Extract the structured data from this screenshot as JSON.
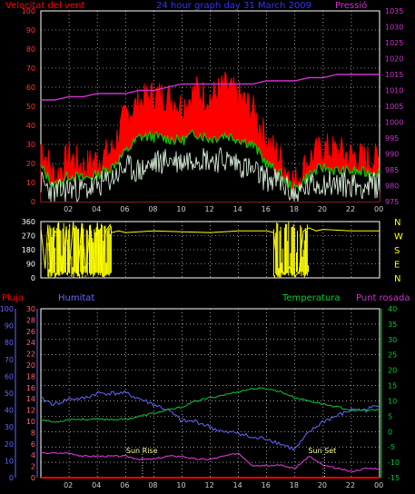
{
  "colors": {
    "background": "#000000",
    "frame": "#ffffff",
    "grid": "#ffffff",
    "wind": "#ff0000",
    "wind_gust_fill": "#ff0000",
    "wind_avg": "#00cc00",
    "wind_white": "#e8ffe8",
    "pressure": "#cc33cc",
    "direction": "#ffff00",
    "rain": "#ff0000",
    "humidity": "#6666ff",
    "temperature": "#00cc33",
    "dewpoint": "#cc33cc",
    "sun_marker": "#ffffff"
  },
  "chart_data": [
    {
      "id": "wind-pressure",
      "type": "line",
      "title": "24 hour graph day  31 March 2009",
      "left_label": "Velocitat del vent",
      "right_label": "Pressió",
      "x_ticks": [
        "02",
        "04",
        "06",
        "08",
        "10",
        "12",
        "14",
        "16",
        "18",
        "20",
        "22",
        "00"
      ],
      "ylim_left": [
        0,
        100
      ],
      "yticks_left": [
        0,
        10,
        20,
        30,
        40,
        50,
        60,
        70,
        80,
        90,
        100
      ],
      "ylim_right": [
        975,
        1035
      ],
      "yticks_right": [
        975,
        980,
        985,
        990,
        995,
        1000,
        1005,
        1010,
        1015,
        1020,
        1025,
        1030,
        1035
      ],
      "x_hours": [
        0,
        1,
        2,
        3,
        4,
        5,
        6,
        7,
        8,
        9,
        10,
        11,
        12,
        13,
        14,
        15,
        16,
        17,
        18,
        19,
        20,
        21,
        22,
        23,
        24
      ],
      "series": [
        {
          "key": "gust",
          "values": [
            30,
            12,
            24,
            18,
            22,
            26,
            45,
            52,
            56,
            55,
            50,
            58,
            54,
            60,
            55,
            48,
            32,
            22,
            10,
            22,
            28,
            26,
            24,
            22,
            22
          ]
        },
        {
          "key": "avg",
          "values": [
            18,
            8,
            14,
            12,
            14,
            18,
            26,
            34,
            34,
            33,
            32,
            36,
            33,
            35,
            33,
            30,
            20,
            14,
            6,
            14,
            18,
            16,
            16,
            15,
            16
          ]
        },
        {
          "key": "low",
          "values": [
            10,
            4,
            7,
            6,
            8,
            12,
            18,
            16,
            20,
            22,
            21,
            24,
            22,
            22,
            20,
            16,
            12,
            10,
            3,
            8,
            10,
            9,
            9,
            8,
            9
          ]
        },
        {
          "key": "pressure",
          "values": [
            1007,
            1007,
            1008,
            1008,
            1009,
            1009,
            1009,
            1010,
            1010,
            1011,
            1012,
            1012,
            1012,
            1012,
            1012,
            1012,
            1013,
            1013,
            1013,
            1014,
            1014,
            1015,
            1015,
            1015,
            1015
          ]
        }
      ]
    },
    {
      "id": "wind-direction",
      "type": "line",
      "ylim": [
        0,
        360
      ],
      "yticks": [
        0,
        90,
        180,
        270,
        360
      ],
      "compass": [
        "N",
        "W",
        "S",
        "E",
        "N"
      ],
      "x_hours": [
        0,
        0.3,
        0.5,
        0.7,
        1.0,
        1.2,
        1.5,
        1.8,
        2.0,
        2.3,
        2.6,
        2.9,
        3.2,
        3.5,
        3.8,
        4.0,
        4.3,
        4.6,
        4.9,
        5.0,
        5.5,
        6,
        8,
        10,
        12,
        14,
        16,
        16.5,
        16.8,
        17.0,
        17.3,
        17.6,
        18,
        18.3,
        18.6,
        19,
        19.5,
        20,
        22,
        24
      ],
      "values": [
        320,
        60,
        340,
        20,
        300,
        280,
        20,
        330,
        40,
        360,
        10,
        350,
        30,
        340,
        20,
        350,
        40,
        300,
        340,
        290,
        300,
        290,
        300,
        295,
        290,
        300,
        300,
        290,
        30,
        60,
        20,
        70,
        10,
        40,
        300,
        320,
        300,
        310,
        300,
        300
      ]
    },
    {
      "id": "humidity-temperature",
      "type": "line",
      "left_labels": [
        "Pluja",
        "Humitat"
      ],
      "right_labels": [
        "Temperatura",
        "Punt rosada"
      ],
      "x_ticks": [
        "02",
        "04",
        "06",
        "08",
        "10",
        "12",
        "14",
        "16",
        "18",
        "20",
        "22",
        "00"
      ],
      "ylim_rain": [
        0,
        100
      ],
      "yticks_rain": [
        0,
        10,
        20,
        30,
        40,
        50,
        60,
        70,
        80,
        90,
        100
      ],
      "ylim_humidity": [
        0,
        30
      ],
      "yticks_humidity": [
        0,
        2,
        4,
        6,
        8,
        10,
        12,
        14,
        16,
        18,
        20,
        22,
        24,
        26,
        28,
        30
      ],
      "ylim_temp": [
        -15,
        40
      ],
      "yticks_temp": [
        -15,
        -10,
        -5,
        0,
        5,
        10,
        15,
        20,
        25,
        30,
        35,
        40
      ],
      "x_hours": [
        0,
        1,
        2,
        3,
        4,
        5,
        6,
        7,
        8,
        9,
        10,
        11,
        12,
        13,
        14,
        15,
        16,
        17,
        18,
        19,
        20,
        21,
        22,
        23,
        24
      ],
      "series": [
        {
          "key": "rain",
          "values": [
            0,
            0,
            0,
            0,
            0,
            0,
            0,
            0,
            0,
            0,
            0,
            0,
            0,
            0,
            0,
            0,
            0,
            0,
            0,
            0,
            0,
            0,
            0,
            0,
            0
          ]
        },
        {
          "key": "humidity",
          "values": [
            14,
            13,
            14,
            14,
            15,
            15,
            15,
            14,
            13,
            12,
            10,
            10,
            9,
            8,
            8,
            7,
            7,
            6,
            5,
            8,
            10,
            11,
            12,
            12,
            13
          ]
        },
        {
          "key": "temperature",
          "values": [
            4,
            3,
            4,
            4,
            4,
            4,
            4,
            5,
            6,
            7,
            8,
            10,
            11,
            12,
            13,
            14,
            14,
            13,
            11,
            10,
            9,
            8,
            7,
            7,
            7
          ]
        },
        {
          "key": "dewpoint",
          "values": [
            -7,
            -7,
            -7,
            -8,
            -8,
            -8,
            -8,
            -9,
            -9,
            -8,
            -8,
            -9,
            -9,
            -8,
            -7,
            -11,
            -11,
            -11,
            -12,
            -8,
            -11,
            -12,
            -13,
            -12,
            -12
          ]
        }
      ],
      "annotations": [
        {
          "label": "Sun Rise",
          "hour": 7.2
        },
        {
          "label": "Sun Set",
          "hour": 20.1
        }
      ]
    }
  ]
}
